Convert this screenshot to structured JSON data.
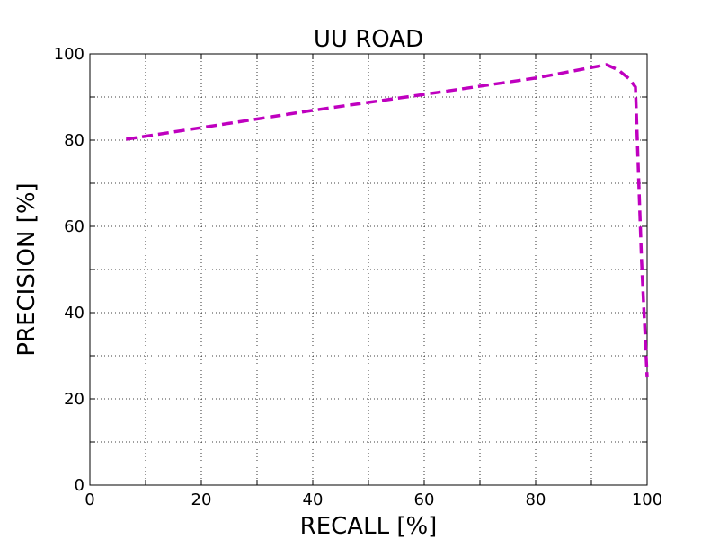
{
  "chart_data": {
    "type": "line",
    "title": "UU ROAD",
    "x_label": "RECALL [%]",
    "y_label": "PRECISION [%]",
    "x": [
      6.5,
      20,
      40,
      60,
      80,
      92.7,
      94.8,
      96.8,
      97.9,
      99.0,
      100
    ],
    "values": [
      80.2,
      82.9,
      86.9,
      90.6,
      94.4,
      97.5,
      96.3,
      94.2,
      92.3,
      52,
      25
    ],
    "color": "#bf00bf",
    "xlim": [
      0,
      100
    ],
    "xticks": [
      0,
      20,
      40,
      60,
      80,
      100
    ],
    "xminor": [
      10,
      30,
      50,
      70,
      90
    ],
    "ylim": [
      0,
      100
    ],
    "yticks": [
      0,
      20,
      40,
      60,
      80,
      100
    ],
    "yminor": [
      10,
      30,
      50,
      70,
      90
    ],
    "grid": true
  }
}
